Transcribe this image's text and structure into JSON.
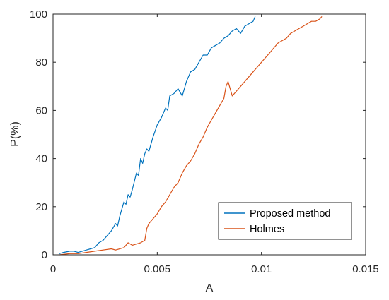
{
  "chart_data": {
    "type": "line",
    "xlabel": "A",
    "ylabel": "P(%)",
    "xlim": [
      0,
      0.015
    ],
    "ylim": [
      0,
      100
    ],
    "xticks": [
      0,
      0.005,
      0.01,
      0.015
    ],
    "xtick_labels": [
      "0",
      "0.005",
      "0.01",
      "0.015"
    ],
    "yticks": [
      0,
      20,
      40,
      60,
      80,
      100
    ],
    "ytick_labels": [
      "0",
      "20",
      "40",
      "60",
      "80",
      "100"
    ],
    "grid": false,
    "legend_position": "bottom-right",
    "series": [
      {
        "name": "Proposed method",
        "color": "#0072BD",
        "x": [
          0.0003,
          0.0005,
          0.0008,
          0.001,
          0.0012,
          0.0014,
          0.0016,
          0.0018,
          0.002,
          0.0022,
          0.0024,
          0.0026,
          0.0028,
          0.003,
          0.0031,
          0.0032,
          0.0034,
          0.0035,
          0.0036,
          0.0037,
          0.0038,
          0.004,
          0.0041,
          0.0042,
          0.0043,
          0.0044,
          0.0045,
          0.0046,
          0.0048,
          0.005,
          0.0052,
          0.0054,
          0.0055,
          0.0056,
          0.0058,
          0.006,
          0.0062,
          0.0064,
          0.0066,
          0.0068,
          0.007,
          0.0072,
          0.0074,
          0.0076,
          0.0078,
          0.008,
          0.0082,
          0.0084,
          0.0086,
          0.0088,
          0.009,
          0.0092,
          0.0094,
          0.0096,
          0.0097
        ],
        "y": [
          0.5,
          1,
          1.5,
          1.5,
          1,
          1.5,
          2,
          2.5,
          3,
          5,
          6,
          8,
          10,
          13,
          12,
          16,
          22,
          21,
          25,
          24,
          27,
          34,
          33,
          40,
          38,
          42,
          44,
          43,
          49,
          54,
          57,
          61,
          60,
          66,
          67,
          69,
          66,
          72,
          76,
          77,
          80,
          83,
          83,
          86,
          87,
          88,
          90,
          91,
          93,
          94,
          92,
          95,
          96,
          97,
          99
        ]
      },
      {
        "name": "Holmes",
        "color": "#D95319",
        "x": [
          0.0003,
          0.0008,
          0.0012,
          0.0016,
          0.002,
          0.0024,
          0.0028,
          0.003,
          0.0034,
          0.0036,
          0.0038,
          0.0042,
          0.0044,
          0.0045,
          0.0046,
          0.0048,
          0.005,
          0.0052,
          0.0054,
          0.0056,
          0.0058,
          0.006,
          0.0062,
          0.0064,
          0.0066,
          0.0068,
          0.007,
          0.0072,
          0.0074,
          0.0076,
          0.0078,
          0.008,
          0.0082,
          0.0083,
          0.0084,
          0.0086,
          0.0088,
          0.009,
          0.0092,
          0.0094,
          0.0096,
          0.0098,
          0.01,
          0.0102,
          0.0104,
          0.0106,
          0.0108,
          0.011,
          0.0112,
          0.0114,
          0.0116,
          0.0118,
          0.012,
          0.0122,
          0.0124,
          0.0126,
          0.0128,
          0.0129
        ],
        "y": [
          0,
          0.5,
          0.5,
          1,
          1.5,
          2,
          2.5,
          2,
          3,
          5,
          4,
          5,
          6,
          11,
          13,
          15,
          17,
          20,
          22,
          25,
          28,
          30,
          34,
          37,
          39,
          42,
          46,
          49,
          53,
          56,
          59,
          62,
          65,
          70,
          72,
          66,
          68,
          70,
          72,
          74,
          76,
          78,
          80,
          82,
          84,
          86,
          88,
          89,
          90,
          92,
          93,
          94,
          95,
          96,
          97,
          97,
          98,
          99
        ]
      }
    ]
  }
}
